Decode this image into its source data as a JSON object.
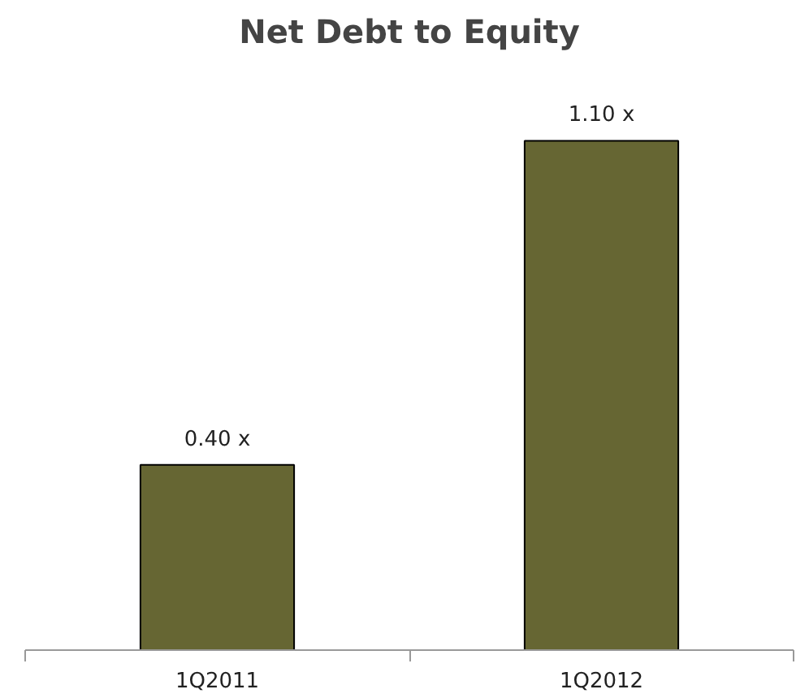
{
  "chart_data": {
    "type": "bar",
    "title": "Net Debt to Equity",
    "categories": [
      "1Q2011",
      "1Q2012"
    ],
    "values": [
      0.4,
      1.1
    ],
    "value_labels": [
      "0.40 x",
      "1.10 x"
    ],
    "color": "#666633",
    "tick_labels": "x",
    "grid": false
  }
}
